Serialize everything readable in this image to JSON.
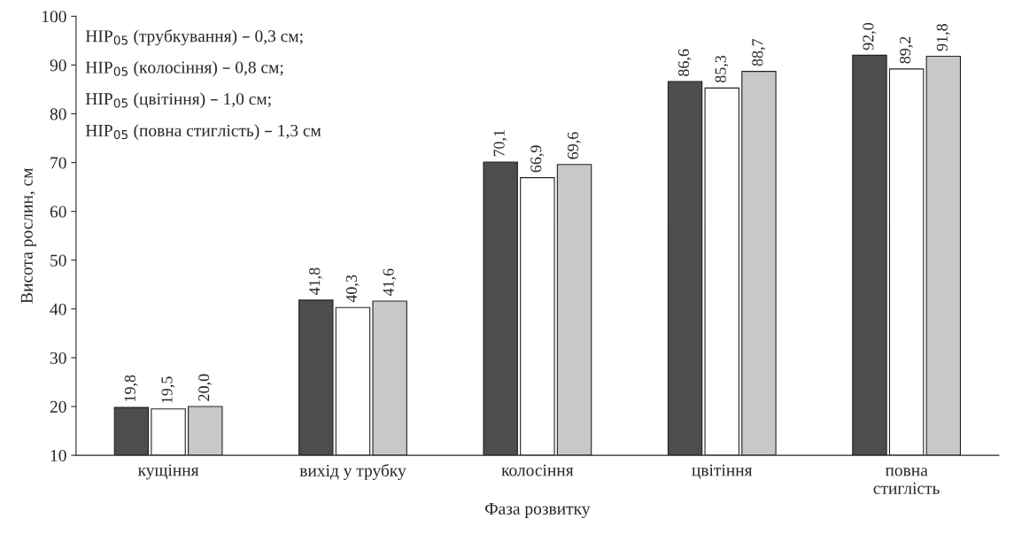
{
  "chart_data": {
    "type": "bar",
    "xlabel": "Фаза розвитку",
    "ylabel": "Висота рослин, см",
    "categories": [
      "кущіння",
      "вихід у трубку",
      "колосіння",
      "цвітіння",
      "повна\nстиглість"
    ],
    "series": [
      {
        "color": "#4d4d4d",
        "values": [
          19.8,
          41.8,
          70.1,
          86.6,
          92.0
        ],
        "value_labels": [
          "19,8",
          "41,8",
          "70,1",
          "86,6",
          "92,0"
        ]
      },
      {
        "color": "#ffffff",
        "values": [
          19.5,
          40.3,
          66.9,
          85.3,
          89.2
        ],
        "value_labels": [
          "19,5",
          "40,3",
          "66,9",
          "85,3",
          "89,2"
        ]
      },
      {
        "color": "#c8c8c8",
        "values": [
          20.0,
          41.6,
          69.6,
          88.7,
          91.8
        ],
        "value_labels": [
          "20,0",
          "41,6",
          "69,6",
          "88,7",
          "91,8"
        ]
      }
    ],
    "ylim": [
      10,
      100
    ],
    "yticks": [
      10,
      20,
      30,
      40,
      50,
      60,
      70,
      80,
      90,
      100
    ],
    "grid": false,
    "legend": false,
    "annotations": [
      "НІР$_{05}$ (трубкування) – 0,3 см;",
      "НІР$_{05}$ (колосіння) – 0,8 см;",
      "НІР$_{05}$ (цвітіння) – 1,0 см;",
      "НІР$_{05}$ (повна стиглість) – 1,3 см"
    ]
  }
}
